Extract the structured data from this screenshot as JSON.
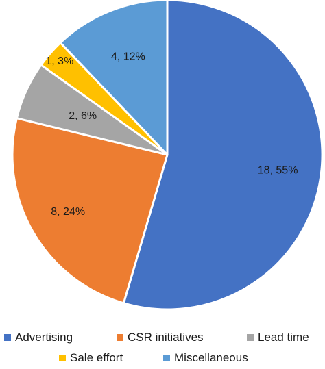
{
  "chart_data": {
    "type": "pie",
    "title": "",
    "series": [
      {
        "slices": [
          {
            "label": "Advertising",
            "value": 18,
            "percent": "55%",
            "color": "#4472C4"
          },
          {
            "label": "CSR initiatives",
            "value": 8,
            "percent": "24%",
            "color": "#ED7D31"
          },
          {
            "label": "Lead time",
            "value": 2,
            "percent": "6%",
            "color": "#A5A5A5"
          },
          {
            "label": "Sale effort",
            "value": 1,
            "percent": "3%",
            "color": "#FFC000"
          },
          {
            "label": "Miscellaneous",
            "value": 4,
            "percent": "12%",
            "color": "#5B9BD5"
          }
        ]
      }
    ],
    "data_labels": [
      "18, 55%",
      "8, 24%",
      "2, 6%",
      "1, 3%",
      "4, 12%"
    ],
    "legend": {
      "position": "bottom",
      "entries": [
        "Advertising",
        "CSR initiatives",
        "Lead time",
        "Sale effort",
        "Miscellaneous"
      ]
    },
    "start_angle": "12 o'clock",
    "direction": "clockwise",
    "slice_border_color": "#ffffff"
  }
}
